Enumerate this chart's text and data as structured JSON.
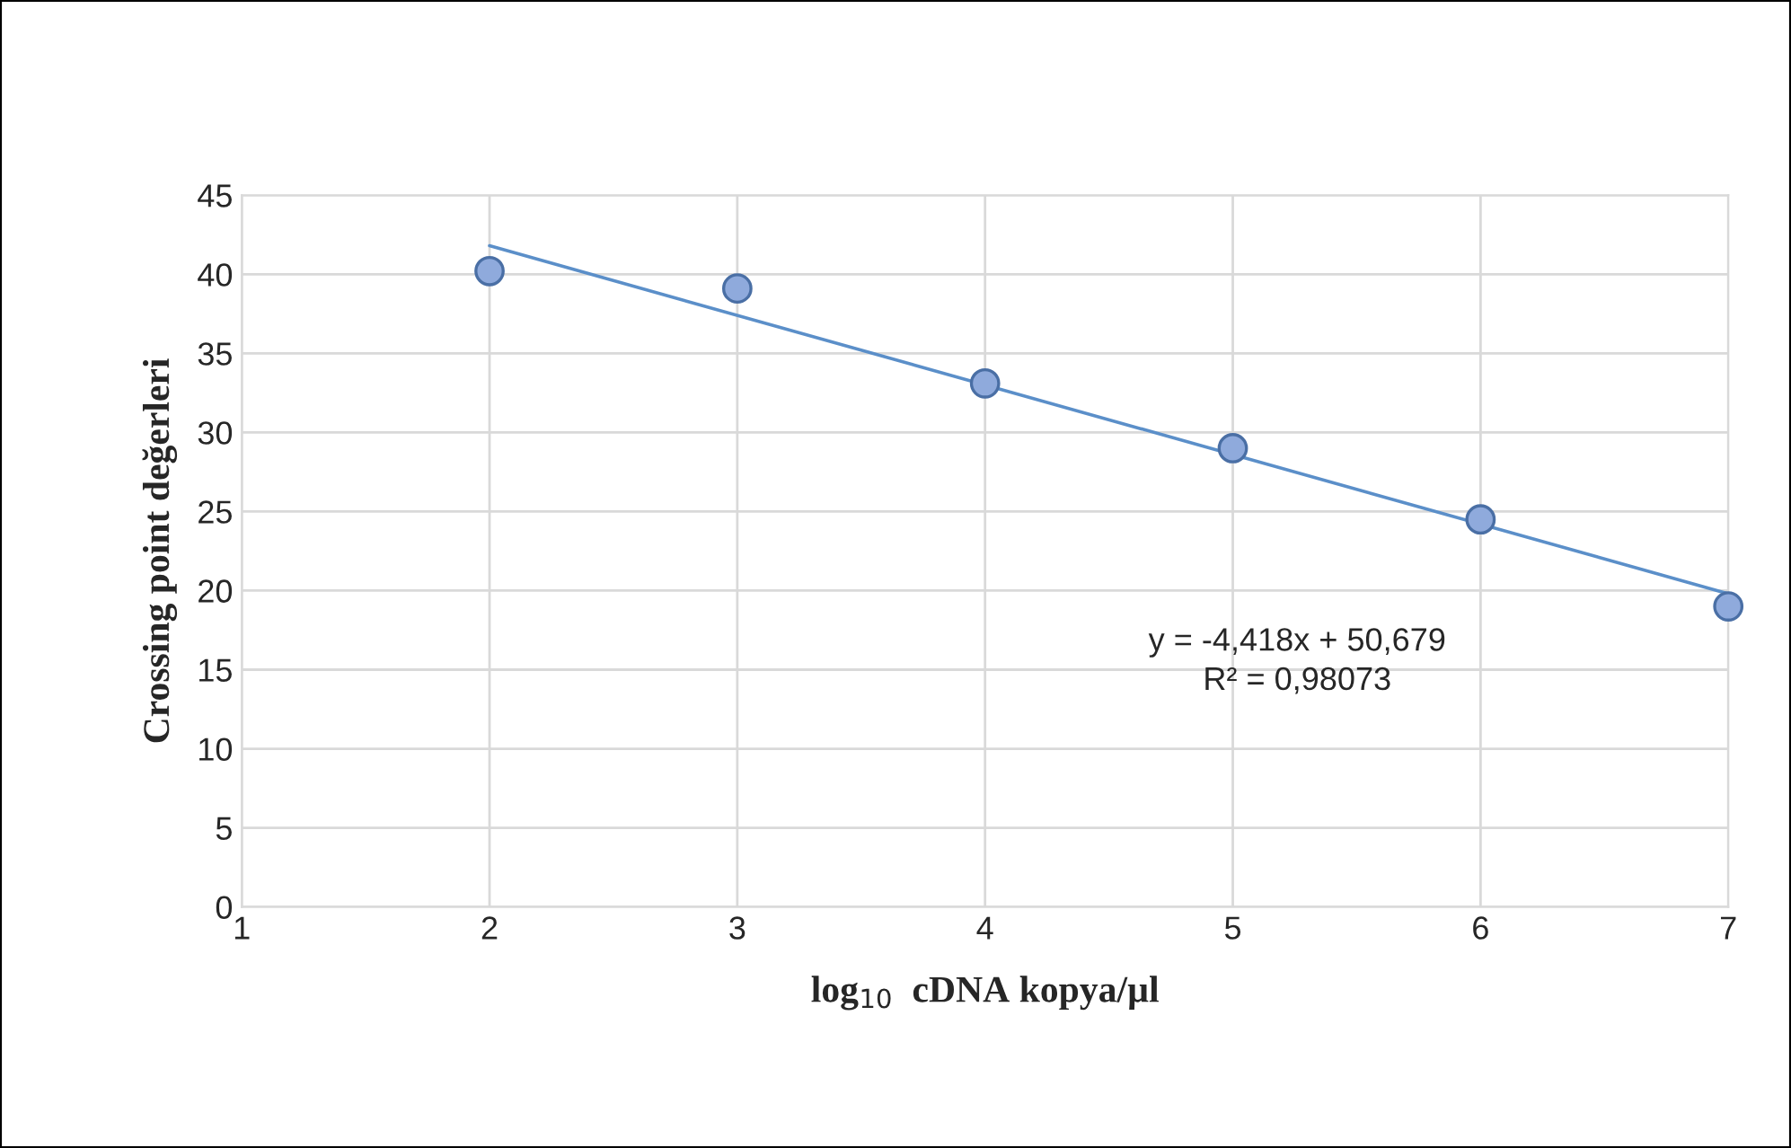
{
  "chart_data": {
    "type": "scatter",
    "xlabel": "log$_{10}$  cDNA kopya/µl",
    "ylabel": "Crossing point değerleri",
    "x": [
      2,
      3,
      4,
      5,
      6,
      7
    ],
    "series": [
      {
        "color": "#8faadc",
        "marker": "circle",
        "values": [
          40.2,
          39.1,
          33.1,
          29.0,
          24.5,
          19.0
        ]
      },
      {
        "type": "line",
        "color": "#5b8fc9",
        "x": [
          2,
          7
        ],
        "values": [
          41.8,
          19.8
        ]
      }
    ],
    "annotations": [
      "y = -4,418x + 50,679",
      "R² = 0,98073"
    ],
    "xlim": [
      1,
      7
    ],
    "ylim": [
      0,
      45
    ],
    "xticks": [
      1,
      2,
      3,
      4,
      5,
      6,
      7
    ],
    "yticks": [
      0,
      5,
      10,
      15,
      20,
      25,
      30,
      35,
      40,
      45
    ],
    "grid": true,
    "legend": false
  }
}
